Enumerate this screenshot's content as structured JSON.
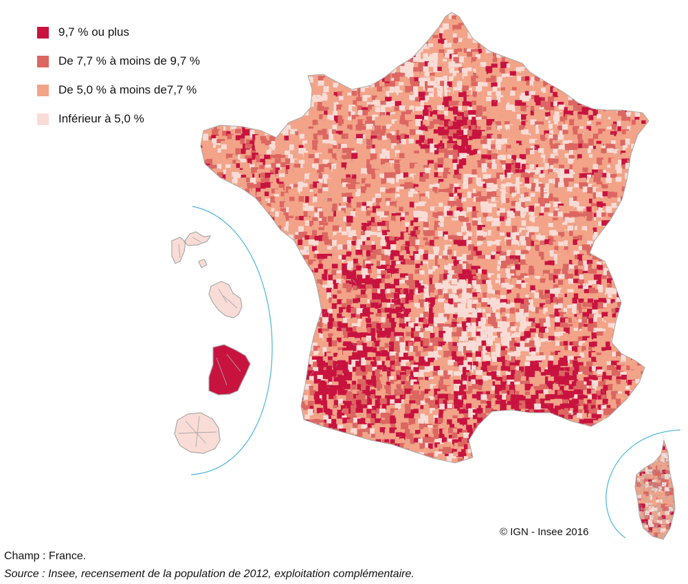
{
  "legend": {
    "items": [
      {
        "label": "9,7 % ou plus",
        "color": "#c8133f"
      },
      {
        "label": "De 7,7 % à moins de 9,7 %",
        "color": "#dc6661"
      },
      {
        "label": "De 5,0 % à moins de7,7 %",
        "color": "#f2a388"
      },
      {
        "label": "Inférieur à 5,0 %",
        "color": "#fadcd6"
      }
    ]
  },
  "map": {
    "territories": [
      {
        "name": "France métropolitaine",
        "class": "mixed"
      },
      {
        "name": "Guadeloupe",
        "class": "Inférieur à 5,0 %"
      },
      {
        "name": "Martinique",
        "class": "Inférieur à 5,0 %"
      },
      {
        "name": "Guyane",
        "class": "9,7 % ou plus"
      },
      {
        "name": "La Réunion",
        "class": "Inférieur à 5,0 %"
      },
      {
        "name": "Corse",
        "class": "mixed"
      }
    ],
    "inset_line_color": "#4bb4d8",
    "border_color": "#a8a8a8"
  },
  "copyright": "© IGN - Insee 2016",
  "notes": {
    "champ": "Champ : France.",
    "source": "Source : Insee, recensement de la population de 2012, exploitation complémentaire."
  }
}
